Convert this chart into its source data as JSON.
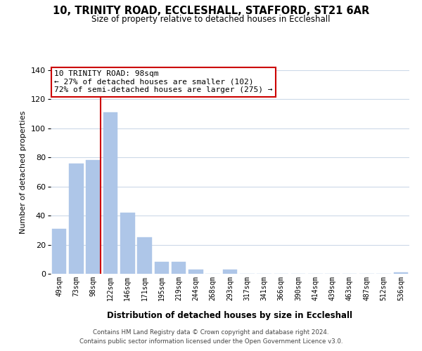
{
  "title": "10, TRINITY ROAD, ECCLESHALL, STAFFORD, ST21 6AR",
  "subtitle": "Size of property relative to detached houses in Eccleshall",
  "xlabel": "Distribution of detached houses by size in Eccleshall",
  "ylabel": "Number of detached properties",
  "bar_labels": [
    "49sqm",
    "73sqm",
    "98sqm",
    "122sqm",
    "146sqm",
    "171sqm",
    "195sqm",
    "219sqm",
    "244sqm",
    "268sqm",
    "293sqm",
    "317sqm",
    "341sqm",
    "366sqm",
    "390sqm",
    "414sqm",
    "439sqm",
    "463sqm",
    "487sqm",
    "512sqm",
    "536sqm"
  ],
  "bar_values": [
    31,
    76,
    78,
    111,
    42,
    25,
    8,
    8,
    3,
    0,
    3,
    0,
    0,
    0,
    0,
    0,
    0,
    0,
    0,
    0,
    1
  ],
  "bar_color": "#aec6e8",
  "vline_bar_index": 2,
  "vline_color": "#cc0000",
  "ylim": [
    0,
    140
  ],
  "yticks": [
    0,
    20,
    40,
    60,
    80,
    100,
    120,
    140
  ],
  "annotation_title": "10 TRINITY ROAD: 98sqm",
  "annotation_line1": "← 27% of detached houses are smaller (102)",
  "annotation_line2": "72% of semi-detached houses are larger (275) →",
  "annotation_box_color": "#ffffff",
  "annotation_box_edge": "#cc0000",
  "footer_line1": "Contains HM Land Registry data © Crown copyright and database right 2024.",
  "footer_line2": "Contains public sector information licensed under the Open Government Licence v3.0.",
  "background_color": "#ffffff",
  "grid_color": "#ccd9e8"
}
